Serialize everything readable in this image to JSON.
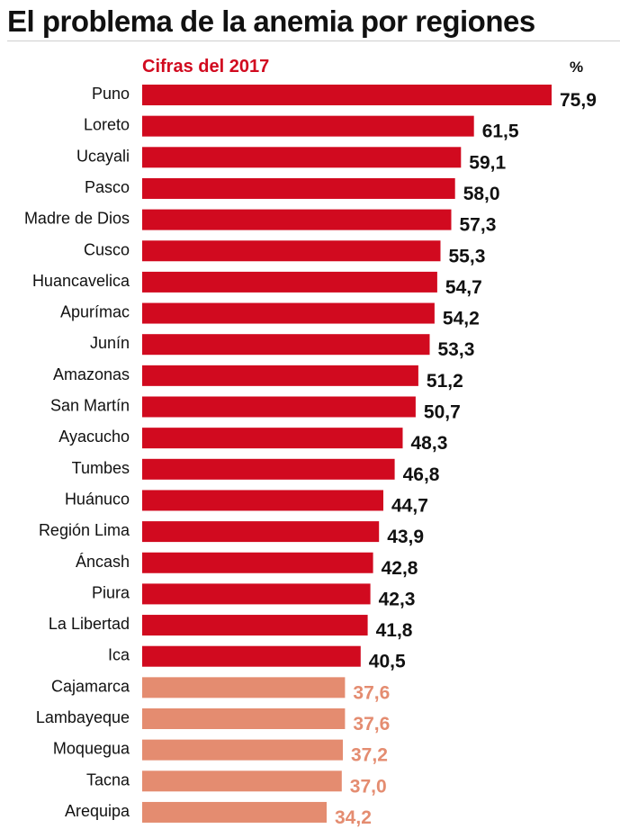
{
  "title": "El problema de la anemia por regiones",
  "subtitle": "Cifras del 2017",
  "unit": "%",
  "colors": {
    "primary": "#d10a1f",
    "secondary": "#e48c70",
    "text": "#111111"
  },
  "chart_data": {
    "type": "bar",
    "orientation": "horizontal",
    "title": "El problema de la anemia por regiones",
    "subtitle": "Cifras del 2017",
    "unit": "%",
    "categories": [
      "Puno",
      "Loreto",
      "Ucayali",
      "Pasco",
      "Madre de Dios",
      "Cusco",
      "Huancavelica",
      "Apurímac",
      "Junín",
      "Amazonas",
      "San Martín",
      "Ayacucho",
      "Tumbes",
      "Huánuco",
      "Región Lima",
      "Áncash",
      "Piura",
      "La Libertad",
      "Ica",
      "Cajamarca",
      "Lambayeque",
      "Moquegua",
      "Tacna",
      "Arequipa"
    ],
    "values": [
      75.9,
      61.5,
      59.1,
      58.0,
      57.3,
      55.3,
      54.7,
      54.2,
      53.3,
      51.2,
      50.7,
      48.3,
      46.8,
      44.7,
      43.9,
      42.8,
      42.3,
      41.8,
      40.5,
      37.6,
      37.6,
      37.2,
      37.0,
      34.2
    ],
    "value_labels": [
      "75,9",
      "61,5",
      "59,1",
      "58,0",
      "57,3",
      "55,3",
      "54,7",
      "54,2",
      "53,3",
      "51,2",
      "50,7",
      "48,3",
      "46,8",
      "44,7",
      "43,9",
      "42,8",
      "42,3",
      "41,8",
      "40,5",
      "37,6",
      "37,6",
      "37,2",
      "37,0",
      "34,2"
    ],
    "highlight": [
      "primary",
      "primary",
      "primary",
      "primary",
      "primary",
      "primary",
      "primary",
      "primary",
      "primary",
      "primary",
      "primary",
      "primary",
      "primary",
      "primary",
      "primary",
      "primary",
      "primary",
      "primary",
      "primary",
      "secondary",
      "secondary",
      "secondary",
      "secondary",
      "secondary"
    ],
    "xlim": [
      0,
      75.9
    ],
    "grid": false,
    "legend": "none"
  }
}
